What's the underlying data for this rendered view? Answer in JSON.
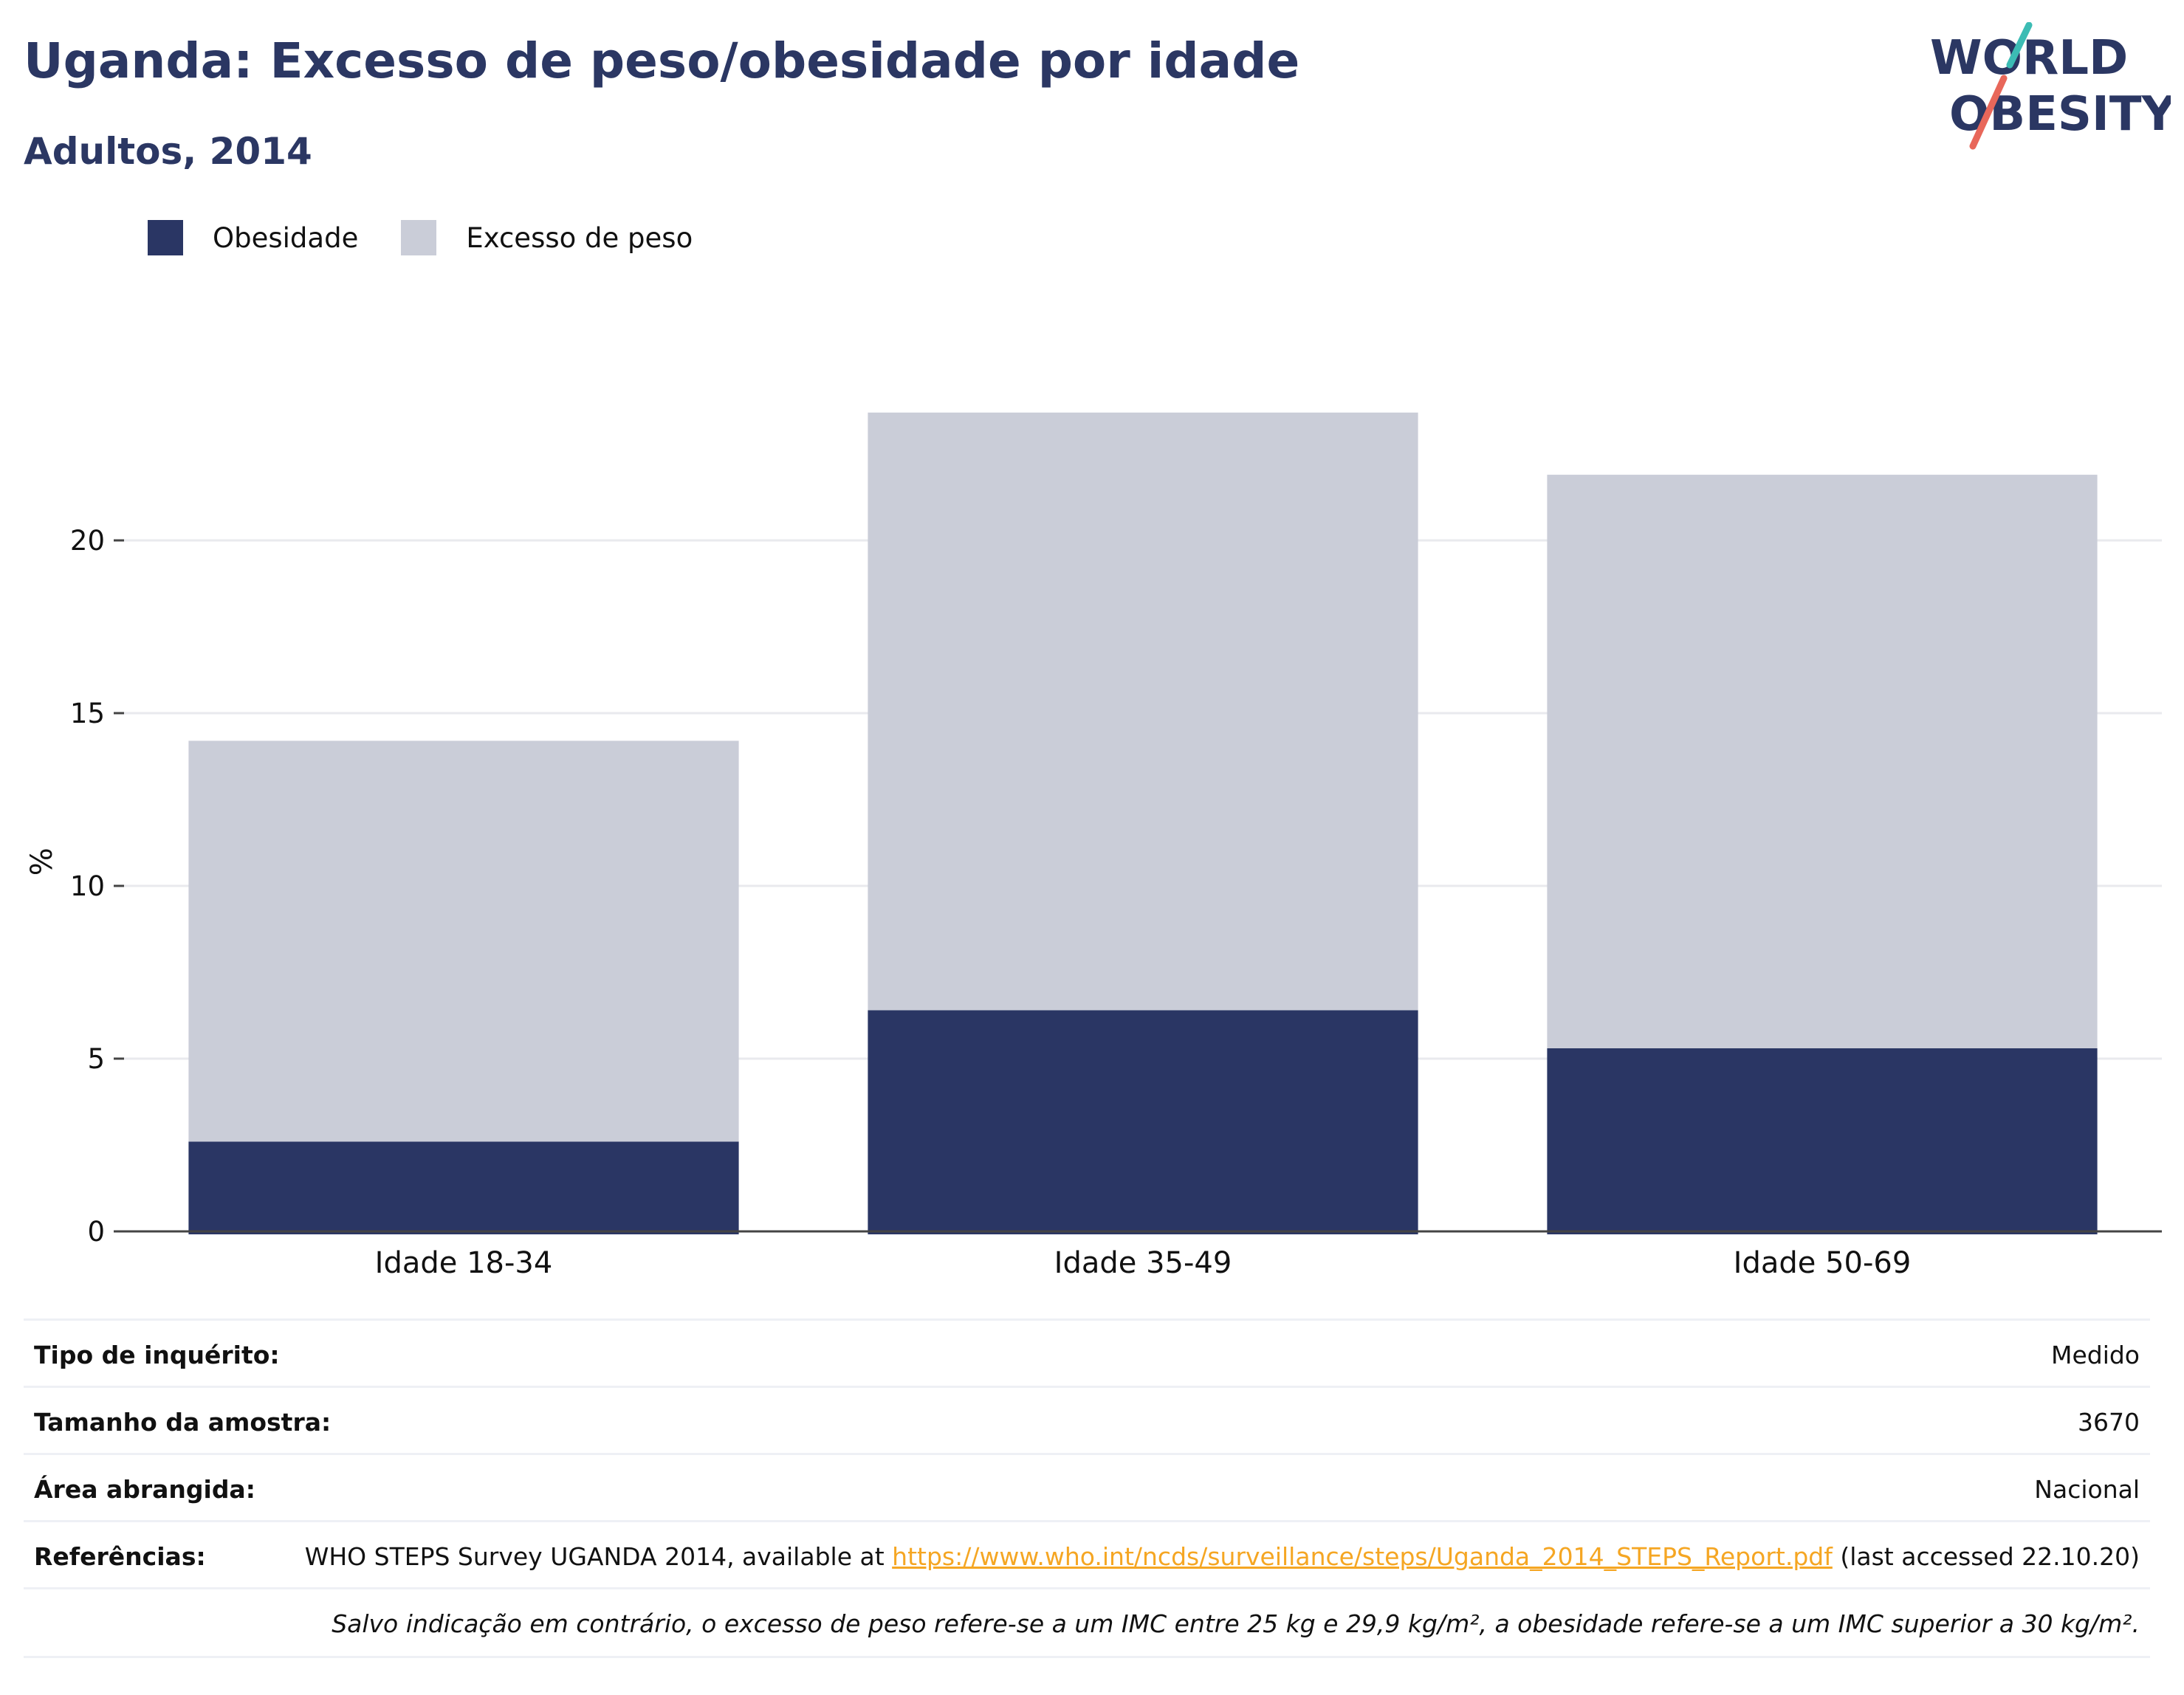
{
  "header": {
    "title": "Uganda: Excesso de peso/obesidade por idade",
    "subtitle": "Adultos, 2014"
  },
  "logo": {
    "line1": "WORLD",
    "line2": "OBESITY"
  },
  "colors": {
    "obesity": "#2a3664",
    "overweight": "#cacdd8",
    "title": "#2b3763",
    "link": "#f5a623"
  },
  "legend": [
    {
      "label": "Obesidade",
      "color": "#2a3664"
    },
    {
      "label": "Excesso de peso",
      "color": "#cacdd8"
    }
  ],
  "chart_data": {
    "type": "bar",
    "stacked": true,
    "categories": [
      "Idade 18-34",
      "Idade 35-49",
      "Idade 50-69"
    ],
    "series": [
      {
        "name": "Obesidade",
        "values": [
          2.6,
          6.4,
          5.3
        ]
      },
      {
        "name": "Excesso de peso",
        "values": [
          11.6,
          17.3,
          16.6
        ]
      }
    ],
    "totals": [
      14.2,
      23.7,
      21.9
    ],
    "ylabel": "%",
    "ylim": [
      0,
      27
    ],
    "yticks": [
      0,
      5,
      10,
      15,
      20
    ],
    "grid": true,
    "legend_position": "top-left"
  },
  "info": {
    "survey_type_label": "Tipo de inquérito:",
    "survey_type_value": "Medido",
    "sample_size_label": "Tamanho da amostra:",
    "sample_size_value": "3670",
    "area_label": "Área abrangida:",
    "area_value": "Nacional",
    "references_label": "Referências:",
    "references_text_before": "WHO STEPS Survey UGANDA 2014, available at",
    "references_link": "https://www.who.int/ncds/surveillance/steps/Uganda_2014_STEPS_Report.pdf",
    "references_text_after": "(last accessed 22.10.20)",
    "note": "Salvo indicação em contrário, o excesso de peso refere-se a um IMC entre 25 kg e 29,9 kg/m², a obesidade refere-se a um IMC superior a 30 kg/m²."
  }
}
